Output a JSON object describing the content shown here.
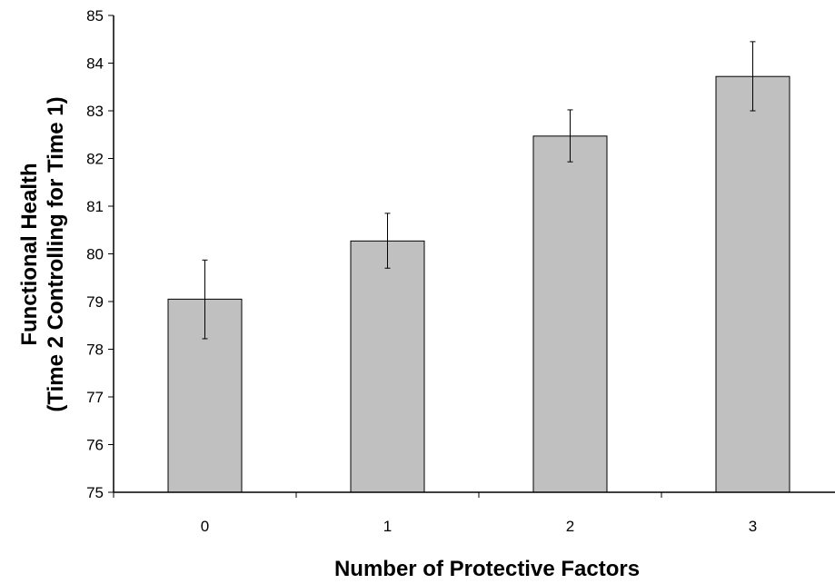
{
  "chart_data": {
    "type": "bar",
    "categories": [
      "0",
      "1",
      "2",
      "3"
    ],
    "values": [
      79.05,
      80.27,
      82.47,
      83.72
    ],
    "error_bars": {
      "low": [
        78.22,
        79.7,
        81.93,
        83.0
      ],
      "high": [
        79.87,
        80.85,
        83.02,
        84.45
      ]
    },
    "title": "",
    "xlabel": "Number of Protective Factors",
    "ylabel_lines": [
      "Functional Health",
      "(Time 2 Controlling for Time 1)"
    ],
    "ylim": [
      75,
      85
    ],
    "yticks": [
      "75",
      "76",
      "77",
      "78",
      "79",
      "80",
      "81",
      "82",
      "83",
      "84",
      "85"
    ],
    "grid": false,
    "legend": "none",
    "colors": {
      "bar_fill": "#c0c0c0",
      "bar_stroke": "#000000",
      "axis": "#000000"
    }
  }
}
